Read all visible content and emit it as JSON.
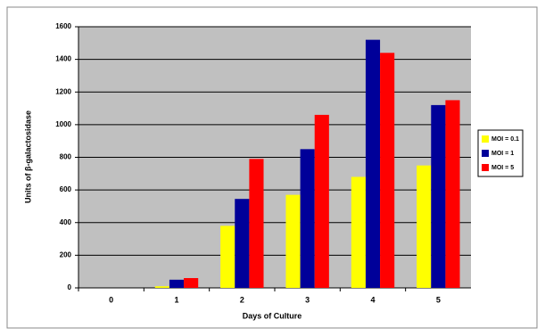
{
  "chart_data": {
    "type": "bar",
    "x_label": "Days of Culture",
    "y_label": "Units of β-galactosidase",
    "categories": [
      "0",
      "1",
      "2",
      "3",
      "4",
      "5"
    ],
    "series": [
      {
        "name": "MOI = 0.1",
        "color": "#ffff00",
        "values": [
          0,
          10,
          380,
          570,
          680,
          750
        ]
      },
      {
        "name": "MOI = 1",
        "color": "#000099",
        "values": [
          0,
          50,
          545,
          850,
          1520,
          1120
        ]
      },
      {
        "name": "MOI = 5",
        "color": "#ff0000",
        "values": [
          0,
          60,
          790,
          1060,
          1440,
          1150
        ]
      }
    ],
    "ylim": [
      0,
      1600
    ],
    "yticks": [
      0,
      200,
      400,
      600,
      800,
      1000,
      1200,
      1400,
      1600
    ],
    "grid": true,
    "legend": "right"
  }
}
